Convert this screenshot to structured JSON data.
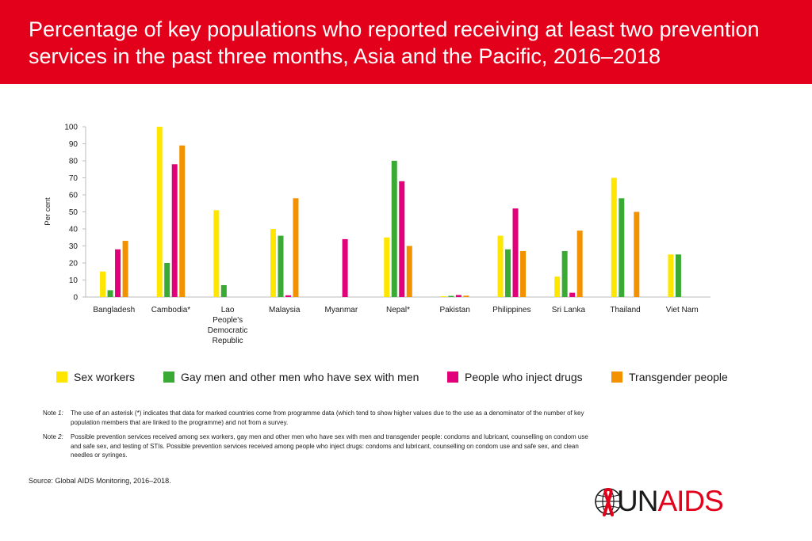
{
  "title": "Percentage of key populations who reported receiving at least two prevention services in the past three months, Asia and the Pacific, 2016–2018",
  "notes": [
    {
      "label": "Note",
      "num": "1:",
      "text": "The use of an asterisk (*) indicates that data for marked countries come from programme data (which tend to show higher values due to the use as a denominator of the number of key population members that are linked to the programme) and not from a survey."
    },
    {
      "label": "Note",
      "num": "2:",
      "text": "Possible prevention services received among sex workers, gay men and other men who have sex with men and transgender people: condoms and lubricant, counselling on condom use and safe sex, and testing of STIs. Possible prevention services received among people who inject drugs: condoms and lubricant, counselling on condom use and safe sex, and clean needles or syringes."
    }
  ],
  "source_label": "Source:",
  "source_text": "Global AIDS Monitoring, 2016–2018.",
  "logo": {
    "un": "UN",
    "aids": "AIDS",
    "icon": "red-ribbon-globe-icon"
  },
  "colors": {
    "header": "#e2001a",
    "sex_workers": "#ffe600",
    "msm": "#3aaa35",
    "pwid": "#e2007a",
    "transgender": "#f39200"
  },
  "chart_data": {
    "type": "bar",
    "ylabel": "Per cent",
    "xlabel": "",
    "ylim": [
      0,
      100
    ],
    "yticks": [
      0,
      10,
      20,
      30,
      40,
      50,
      60,
      70,
      80,
      90,
      100
    ],
    "categories": [
      [
        "Bangladesh"
      ],
      [
        "Cambodia*"
      ],
      [
        "Lao",
        "People's",
        "Democratic",
        "Republic"
      ],
      [
        "Malaysia"
      ],
      [
        "Myanmar"
      ],
      [
        "Nepal*"
      ],
      [
        "Pakistan"
      ],
      [
        "Philippines"
      ],
      [
        "Sri Lanka"
      ],
      [
        "Thailand"
      ],
      [
        "Viet Nam"
      ]
    ],
    "legend_position": "bottom",
    "series": [
      {
        "name": "Sex workers",
        "color": "#ffe600",
        "values": [
          15,
          100,
          51,
          40,
          null,
          35,
          0.5,
          36,
          12,
          70,
          25
        ]
      },
      {
        "name": "Gay men and other men who have sex with men",
        "color": "#3aaa35",
        "values": [
          4,
          20,
          7,
          36,
          null,
          80,
          0.7,
          28,
          27,
          58,
          25
        ]
      },
      {
        "name": "People who inject drugs",
        "color": "#e2007a",
        "values": [
          28,
          78,
          null,
          1,
          34,
          68,
          1.2,
          52,
          2.5,
          null,
          null
        ]
      },
      {
        "name": "Transgender people",
        "color": "#f39200",
        "values": [
          33,
          89,
          null,
          58,
          null,
          30,
          0.8,
          27,
          39,
          50,
          null
        ]
      }
    ]
  }
}
